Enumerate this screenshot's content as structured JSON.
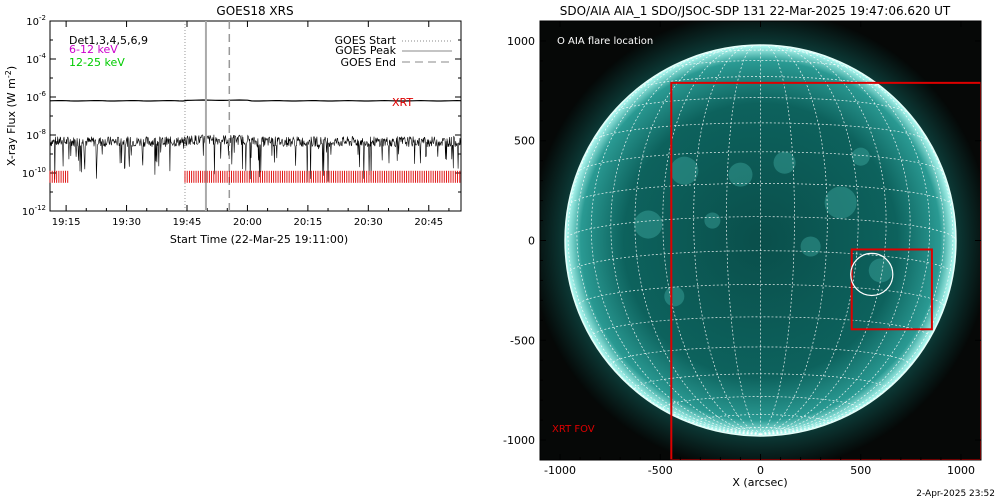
{
  "footer": {
    "date": "2-Apr-2025 23:52"
  },
  "chart_data": [
    {
      "type": "line",
      "title": "GOES18 XRS",
      "xlabel": "Start Time (22-Mar-25 19:11:00)",
      "ylabel": "X-ray Flux (W m",
      "ylabel_sup": "-2",
      "ylabel_close": ")",
      "x_range": [
        "19:11",
        "20:53"
      ],
      "ylim_log10": [
        -12,
        -2
      ],
      "y_scale": "log",
      "x_tick_labels": [
        "19:15",
        "19:30",
        "19:45",
        "20:00",
        "20:15",
        "20:30",
        "20:45"
      ],
      "x_tick_minutes": [
        4,
        19,
        34,
        49,
        64,
        79,
        94
      ],
      "y_tick_labels": [
        {
          "base": "10",
          "exp": "-2",
          "log": -2
        },
        {
          "base": "10",
          "exp": "-4",
          "log": -4
        },
        {
          "base": "10",
          "exp": "-6",
          "log": -6
        },
        {
          "base": "10",
          "exp": "-8",
          "log": -8
        },
        {
          "base": "10",
          "exp": "-10",
          "log": -10
        },
        {
          "base": "10",
          "exp": "-12",
          "log": -12
        }
      ],
      "legend_left": [
        {
          "label": "Det1,3,4,5,6,9",
          "color": "#000000"
        },
        {
          "label": "6-12 keV",
          "color": "#cc00cc"
        },
        {
          "label": "12-25 keV",
          "color": "#00cc00"
        }
      ],
      "legend_right": [
        {
          "label": "GOES Start",
          "style": "dotted",
          "color": "#888888"
        },
        {
          "label": "GOES Peak",
          "style": "solid",
          "color": "#888888"
        },
        {
          "label": "GOES End",
          "style": "dashed",
          "color": "#888888"
        }
      ],
      "xrt_label": "XRT",
      "series": [
        {
          "name": "long",
          "color": "#000000",
          "log_flux": -6.2,
          "x_start_min": 0,
          "x_end_min": 102
        },
        {
          "name": "short",
          "color": "#000000",
          "log_flux": -8.35,
          "x_start_min": 0,
          "x_end_min": 102
        }
      ],
      "event_lines_min": {
        "start": 33.5,
        "peak": 38.7,
        "end": 44.5
      },
      "xrt_obs_min": [
        [
          0,
          4.5
        ],
        [
          33.5,
          102
        ]
      ],
      "xrt_level_log": -10.2
    },
    {
      "type": "image",
      "title": "SDO/AIA AIA_1 SDO/JSOC-SDP 131 22-Mar-2025 19:47:06.620 UT",
      "xlabel": "X (arcsec)",
      "ylabel": "",
      "xlim": [
        -1100,
        1100
      ],
      "ylim": [
        -1100,
        1100
      ],
      "x_tick_labels": [
        "-1000",
        "-500",
        "0",
        "500",
        "1000"
      ],
      "x_ticks": [
        -1000,
        -500,
        0,
        500,
        1000
      ],
      "y_tick_labels": [
        "1000",
        "500",
        "0",
        "-500",
        "-1000"
      ],
      "y_ticks": [
        1000,
        500,
        0,
        -500,
        -1000
      ],
      "solar_radius_arcsec": 975,
      "legend": "O AIA flare location",
      "fov_label": "XRT FOV",
      "xrt_fov": [
        -445,
        -1100,
        1100,
        790
      ],
      "zoom_box": [
        455,
        -445,
        855,
        -45
      ],
      "flare_circle": {
        "x": 555,
        "y": -170,
        "r": 105
      },
      "colors": {
        "fov": "#dd0000",
        "disk": "#0b6d67",
        "grid": "#ffffff"
      }
    }
  ]
}
